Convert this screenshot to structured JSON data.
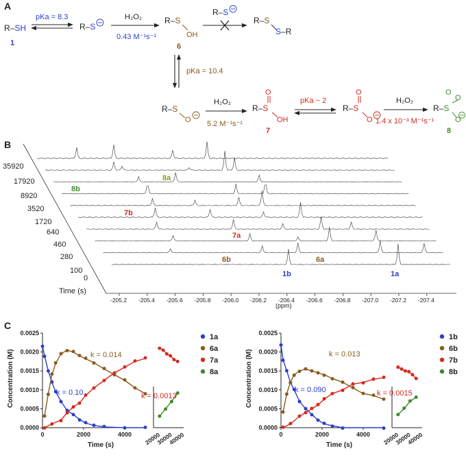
{
  "panels": {
    "a": "A",
    "b": "B",
    "c": "C"
  },
  "scheme": {
    "rsh": "R–SH",
    "rsh_num": "1",
    "pka1": "pKa = 8.3",
    "thiolate": "R–S",
    "h2o2": "H₂O₂",
    "k1": "0.43 M⁻¹s⁻¹",
    "sulfenic_num": "6",
    "disulfide": "R–S–S–R",
    "pka2": "pKa = 10.4",
    "k2": "5.2 M⁻¹s⁻¹",
    "sulfinic_num": "7",
    "pka3": "pKa ~ 2",
    "k3": "1.4 x 10⁻³ M⁻¹s⁻¹",
    "sulfonate_num": "8"
  },
  "nmr": {
    "times": [
      "35920",
      "17920",
      "8920",
      "3520",
      "1720",
      "640",
      "460",
      "280",
      "100",
      "0"
    ],
    "time_label": "Time (s)",
    "xticks": [
      "-205.2",
      "-205.4",
      "-205.6",
      "-205.8",
      "-206.0",
      "-206.2",
      "-206.4",
      "-206.6",
      "-206.8",
      "-207.0",
      "-207.2",
      "-207.4"
    ],
    "xlabel": "(ppm)",
    "labels": {
      "l8b": "8b",
      "l8a": "8a",
      "l7b": "7b",
      "l7a": "7a",
      "l6b": "6b",
      "l6a": "6a",
      "l1b": "1b",
      "l1a": "1a"
    }
  },
  "colors": {
    "blue": "#2b3fc9",
    "brown": "#8a5a1c",
    "red": "#d42a1f",
    "green": "#3f8a2a"
  },
  "chart_data": [
    {
      "type": "scatter",
      "ylabel": "Concentration (M)",
      "xlabel": "Time (s)",
      "ylim": [
        0,
        0.0025
      ],
      "xlim": [
        0,
        5000
      ],
      "yticks": [
        "0.0000",
        "0.0005",
        "0.0010",
        "0.0015",
        "0.0020",
        "0.0025"
      ],
      "xticks": [
        "0",
        "2000",
        "4000"
      ],
      "xticks_inset": [
        "20000",
        "30000",
        "40000"
      ],
      "rates": {
        "k_blue": "k = 0.10",
        "k_brown": "k = 0.014",
        "k_red": "k = 0.0013"
      },
      "legend": [
        "1a",
        "6a",
        "7a",
        "8a"
      ],
      "series": [
        {
          "name": "1a",
          "values": [
            [
              0,
              0.00215
            ],
            [
              100,
              0.0019
            ],
            [
              280,
              0.0015
            ],
            [
              460,
              0.0012
            ],
            [
              640,
              0.00095
            ],
            [
              900,
              0.0007
            ],
            [
              1200,
              0.00045
            ],
            [
              1500,
              0.00035
            ],
            [
              1800,
              0.00022
            ],
            [
              2100,
              0.00012
            ],
            [
              2500,
              6e-05
            ],
            [
              3000,
              2e-05
            ],
            [
              4000,
              0.0
            ],
            [
              5000,
              0.0
            ]
          ]
        },
        {
          "name": "6a",
          "values": [
            [
              100,
              0.0003
            ],
            [
              280,
              0.0009
            ],
            [
              460,
              0.0014
            ],
            [
              640,
              0.0017
            ],
            [
              900,
              0.00195
            ],
            [
              1200,
              0.00205
            ],
            [
              1500,
              0.002
            ],
            [
              1800,
              0.0019
            ],
            [
              2100,
              0.00182
            ],
            [
              2500,
              0.00172
            ],
            [
              3000,
              0.00155
            ],
            [
              3500,
              0.0014
            ],
            [
              4000,
              0.00125
            ],
            [
              4500,
              0.00105
            ],
            [
              5000,
              0.0009
            ]
          ]
        },
        {
          "name": "7a",
          "values": [
            [
              100,
              0.0
            ],
            [
              460,
              0.0001
            ],
            [
              900,
              0.0002
            ],
            [
              1200,
              0.0004
            ],
            [
              1500,
              0.00055
            ],
            [
              1800,
              0.00065
            ],
            [
              2100,
              0.00085
            ],
            [
              2500,
              0.00105
            ],
            [
              3000,
              0.00125
            ],
            [
              3500,
              0.00145
            ],
            [
              4000,
              0.0016
            ],
            [
              4500,
              0.00175
            ],
            [
              5000,
              0.00183
            ]
          ]
        },
        {
          "name": "8a",
          "values": [
            [
              20000,
              0.0003
            ],
            [
              25000,
              0.0005
            ],
            [
              30000,
              0.0007
            ],
            [
              35000,
              0.0009
            ]
          ]
        }
      ]
    },
    {
      "type": "scatter",
      "ylabel": "Concentration (M)",
      "xlabel": "Time (s)",
      "ylim": [
        0,
        0.0025
      ],
      "xlim": [
        0,
        5000
      ],
      "yticks": [
        "0.0000",
        "0.0005",
        "0.0010",
        "0.0015",
        "0.0020",
        "0.0025"
      ],
      "xticks": [
        "0",
        "2000",
        "4000"
      ],
      "xticks_inset": [
        "20000",
        "30000",
        "40000"
      ],
      "rates": {
        "k_blue": "k = 0.090",
        "k_brown": "k = 0.013",
        "k_red": "k = 0.0015"
      },
      "legend": [
        "1b",
        "6b",
        "7b",
        "8b"
      ],
      "series": [
        {
          "name": "1b",
          "values": [
            [
              0,
              0.0022
            ],
            [
              100,
              0.0018
            ],
            [
              280,
              0.0015
            ],
            [
              460,
              0.0012
            ],
            [
              640,
              0.001
            ],
            [
              900,
              0.0007
            ],
            [
              1200,
              0.0005
            ],
            [
              1500,
              0.00035
            ],
            [
              1800,
              0.0002
            ],
            [
              2100,
              0.0001
            ],
            [
              2500,
              5e-05
            ],
            [
              3000,
              0.0
            ],
            [
              5000,
              0.0
            ]
          ]
        },
        {
          "name": "6b",
          "values": [
            [
              100,
              0.0004
            ],
            [
              280,
              0.0009
            ],
            [
              460,
              0.0012
            ],
            [
              640,
              0.0014
            ],
            [
              900,
              0.0015
            ],
            [
              1200,
              0.00155
            ],
            [
              1500,
              0.0015
            ],
            [
              1800,
              0.00145
            ],
            [
              2100,
              0.0014
            ],
            [
              2500,
              0.0013
            ],
            [
              3000,
              0.0012
            ],
            [
              3500,
              0.00105
            ],
            [
              4000,
              0.0009
            ],
            [
              4500,
              0.00085
            ],
            [
              5000,
              0.00075
            ]
          ]
        },
        {
          "name": "7b",
          "values": [
            [
              100,
              0.0
            ],
            [
              460,
              0.0001
            ],
            [
              900,
              0.0003
            ],
            [
              1200,
              0.0004
            ],
            [
              1500,
              0.0005
            ],
            [
              1800,
              0.0006
            ],
            [
              2100,
              0.00075
            ],
            [
              2500,
              0.0009
            ],
            [
              3000,
              0.001
            ],
            [
              3500,
              0.00115
            ],
            [
              4000,
              0.0012
            ],
            [
              4500,
              0.00128
            ],
            [
              5000,
              0.00132
            ]
          ]
        },
        {
          "name": "8b",
          "values": [
            [
              20000,
              0.00035
            ],
            [
              25000,
              0.0005
            ],
            [
              30000,
              0.0007
            ],
            [
              35000,
              0.0008
            ]
          ]
        }
      ]
    }
  ]
}
